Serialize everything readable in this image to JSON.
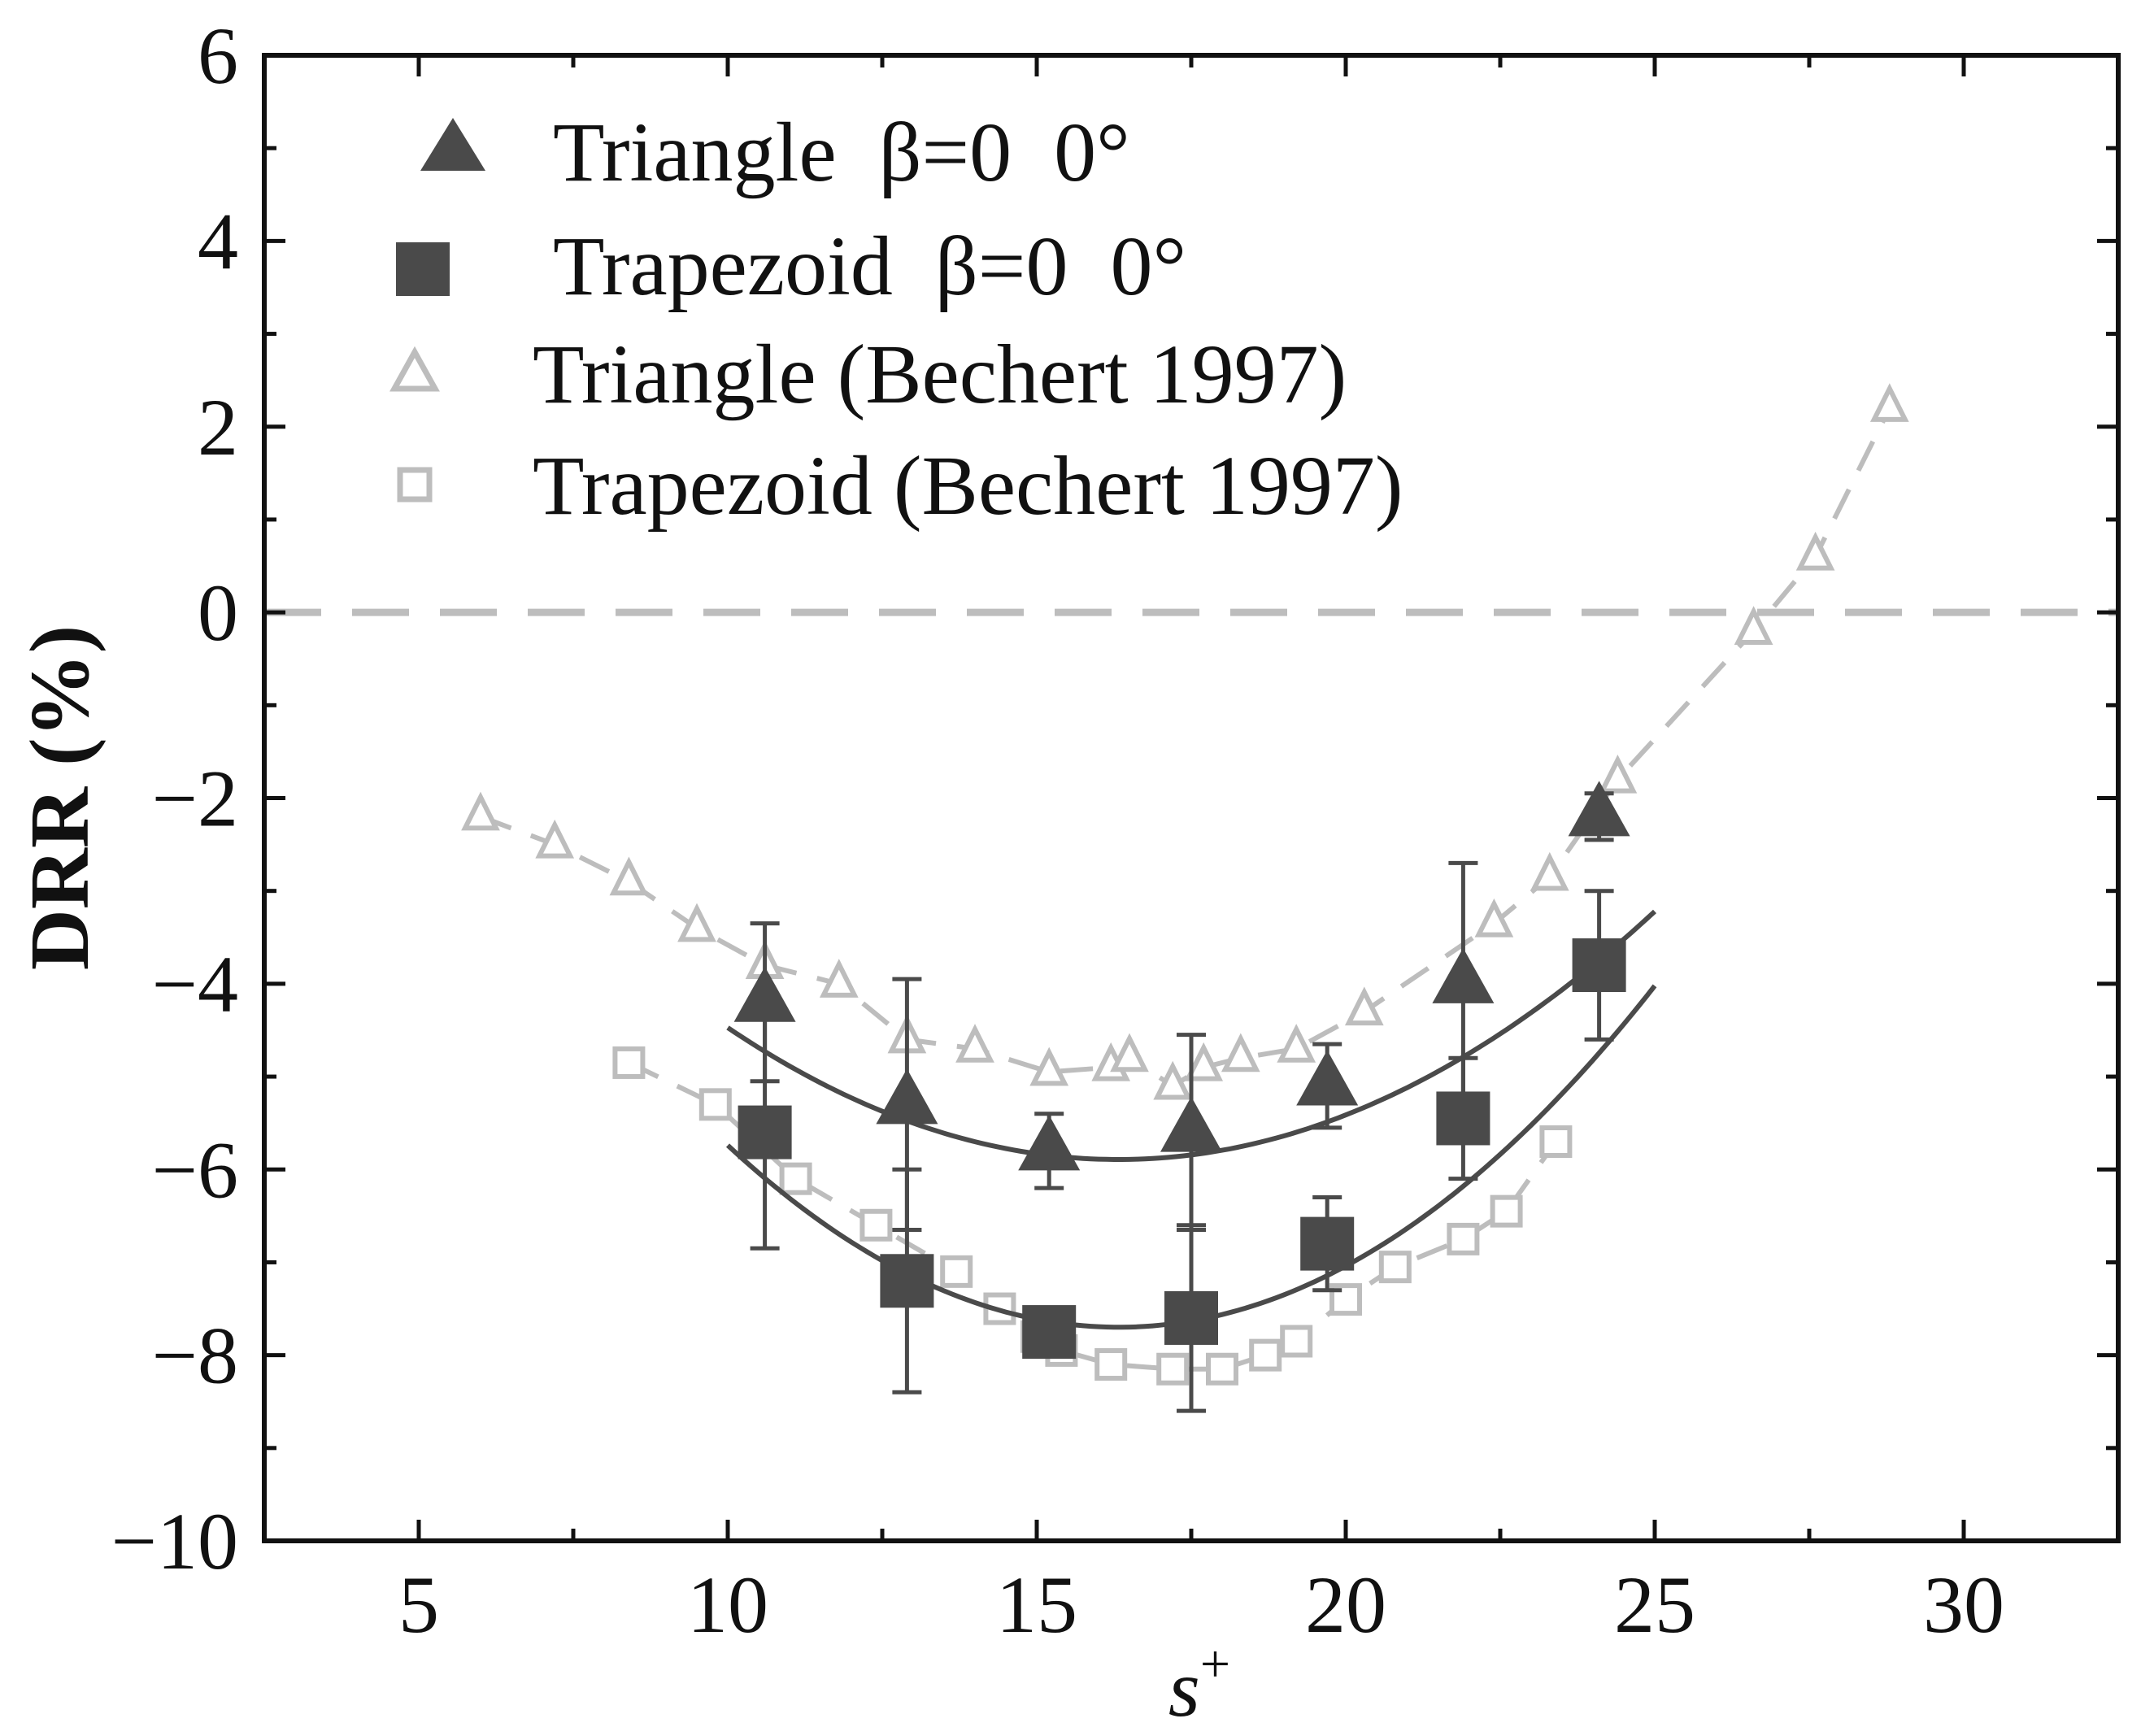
{
  "chart_data": {
    "type": "scatter",
    "title": "",
    "xlabel": "s",
    "xlabel_superscript": "+",
    "ylabel": "DRR (%)",
    "xlim": [
      2.5,
      32.5
    ],
    "ylim": [
      -10,
      6
    ],
    "xticks": [
      5,
      10,
      15,
      20,
      25,
      30
    ],
    "yticks": [
      6,
      4,
      2,
      0,
      -2,
      -4,
      -6,
      -8,
      -10
    ],
    "ytick_labels": [
      "6",
      "4",
      "2",
      "0",
      "−2",
      "−4",
      "−6",
      "−8",
      "−10"
    ],
    "reference_line_y": 0,
    "legend_position": "top-left",
    "colors": {
      "measured": "#4a4a4a",
      "reference": "#bdbdbd",
      "axis": "#111111"
    },
    "series": [
      {
        "name": "Triangle  β=0  0°",
        "style": "filled-triangle",
        "x": [
          10.6,
          12.9,
          15.2,
          17.5,
          19.7,
          21.9,
          24.1
        ],
        "y": [
          -4.2,
          -5.3,
          -5.8,
          -5.6,
          -5.1,
          -4.0,
          -2.2
        ],
        "yerr": [
          0.85,
          1.35,
          0.4,
          1.05,
          0.45,
          1.3,
          0.25
        ],
        "fit_x": [
          10.0,
          25.0
        ],
        "fit_coeffs": [
          0.0355,
          -1.159,
          3.567
        ]
      },
      {
        "name": "Trapezoid  β=0  0°",
        "style": "filled-square",
        "x": [
          10.6,
          12.9,
          15.2,
          17.5,
          19.7,
          21.9,
          24.1
        ],
        "y": [
          -5.6,
          -7.2,
          -7.75,
          -7.6,
          -6.8,
          -5.45,
          -3.8
        ],
        "yerr": [
          1.25,
          1.2,
          0.1,
          1.0,
          0.5,
          0.65,
          0.8
        ],
        "fit_x": [
          10.0,
          25.0
        ],
        "fit_coeffs": [
          0.0489,
          -1.597,
          5.34
        ]
      },
      {
        "name": "Triangle (Bechert 1997)",
        "style": "open-triangle-dashed",
        "x": [
          6.0,
          7.2,
          8.4,
          9.5,
          10.6,
          11.8,
          12.9,
          14.0,
          15.2,
          16.2,
          16.5,
          17.2,
          17.7,
          18.3,
          19.2,
          20.3,
          22.4,
          23.3,
          24.4,
          26.6,
          27.6,
          28.8
        ],
        "y": [
          -2.2,
          -2.5,
          -2.9,
          -3.4,
          -3.8,
          -4.0,
          -4.6,
          -4.7,
          -4.95,
          -4.9,
          -4.8,
          -5.1,
          -4.9,
          -4.8,
          -4.7,
          -4.3,
          -3.35,
          -2.85,
          -1.8,
          -0.2,
          0.6,
          2.2
        ]
      },
      {
        "name": "Trapezoid (Bechert 1997)",
        "style": "open-square-dashed",
        "x": [
          8.4,
          9.8,
          11.1,
          12.4,
          13.7,
          14.4,
          15.0,
          15.4,
          16.2,
          17.2,
          18.0,
          18.7,
          19.2,
          20.0,
          20.8,
          21.9,
          22.6,
          23.4
        ],
        "y": [
          -4.85,
          -5.3,
          -6.1,
          -6.6,
          -7.1,
          -7.5,
          -7.8,
          -7.95,
          -8.1,
          -8.15,
          -8.15,
          -8.0,
          -7.85,
          -7.4,
          -7.05,
          -6.75,
          -6.45,
          -5.7
        ]
      }
    ]
  }
}
